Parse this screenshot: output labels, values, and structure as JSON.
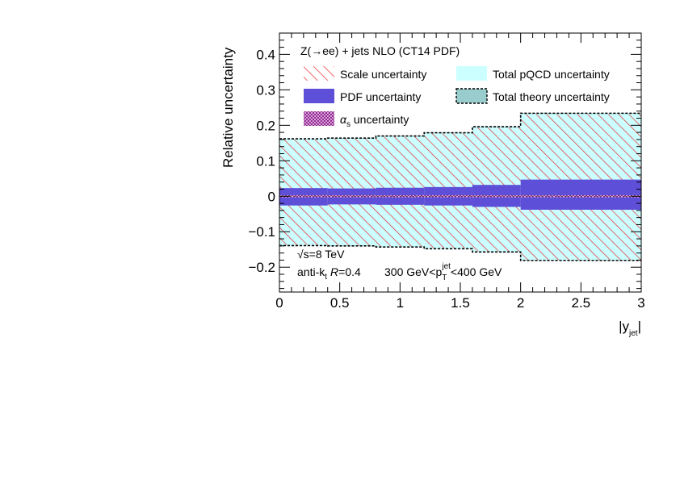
{
  "chart_data": {
    "type": "area",
    "title": "Z(→ee) + jets NLO (CT14 PDF)",
    "xlabel": "|y_jet|",
    "xlabel_main": "|y",
    "xlabel_sub": "jet",
    "xlabel_close": "|",
    "ylabel": "Relative uncertainty",
    "xlim": [
      0,
      3
    ],
    "ylim": [
      -0.27,
      0.46
    ],
    "x_ticks": [
      0,
      0.5,
      1,
      1.5,
      2,
      2.5,
      3
    ],
    "x_tick_labels": [
      "0",
      "0.5",
      "1",
      "1.5",
      "2",
      "2.5",
      "3"
    ],
    "y_ticks": [
      -0.2,
      -0.1,
      0,
      0.1,
      0.2,
      0.3,
      0.4
    ],
    "y_tick_labels": [
      "−0.2",
      "−0.1",
      "0",
      "0.1",
      "0.2",
      "0.3",
      "0.4"
    ],
    "bin_edges": [
      0,
      0.4,
      0.8,
      1.2,
      1.6,
      2.0,
      3.0
    ],
    "series": [
      {
        "name": "Scale uncertainty",
        "up": [
          0.16,
          0.162,
          0.168,
          0.177,
          0.193,
          0.231
        ],
        "down": [
          -0.137,
          -0.138,
          -0.141,
          -0.146,
          -0.155,
          -0.179
        ]
      },
      {
        "name": "PDF uncertainty",
        "up": [
          0.023,
          0.022,
          0.024,
          0.026,
          0.032,
          0.047
        ],
        "down": [
          -0.026,
          -0.023,
          -0.024,
          -0.026,
          -0.03,
          -0.038
        ]
      },
      {
        "name": "αs uncertainty",
        "up": [
          0.003,
          0.003,
          0.003,
          0.003,
          0.003,
          0.003
        ],
        "down": [
          -0.003,
          -0.003,
          -0.003,
          -0.003,
          -0.003,
          -0.003
        ]
      },
      {
        "name": "Total pQCD uncertainty",
        "up": [
          0.161,
          0.163,
          0.169,
          0.178,
          0.194,
          0.232
        ],
        "down": [
          -0.138,
          -0.139,
          -0.142,
          -0.147,
          -0.156,
          -0.18
        ]
      },
      {
        "name": "Total theory uncertainty",
        "up": [
          0.162,
          0.164,
          0.17,
          0.179,
          0.196,
          0.234
        ],
        "down": [
          -0.139,
          -0.14,
          -0.143,
          -0.148,
          -0.157,
          -0.181
        ]
      }
    ],
    "legend": {
      "placement": "top",
      "entries": [
        {
          "key": "scale",
          "label": "Scale uncertainty"
        },
        {
          "key": "pqcd",
          "label": "Total pQCD uncertainty"
        },
        {
          "key": "pdf",
          "label": "PDF uncertainty"
        },
        {
          "key": "theory",
          "label": "Total theory uncertainty"
        },
        {
          "key": "alphas",
          "label": "αs uncertainty",
          "label_symbol": "α",
          "label_sub": "s",
          "label_rest": " uncertainty"
        }
      ]
    },
    "annotations": {
      "sqrt_s": "√s=8 TeV",
      "algo_prefix": "anti-k",
      "algo_sub": "t",
      "algo_r": "R",
      "algo_rest": "=0.4",
      "pt_range_prefix": "300 GeV<p",
      "pt_sub": "T",
      "pt_sup": "jet",
      "pt_range_suffix": "<400 GeV"
    },
    "colors": {
      "scale_hatch": "#e8282a",
      "pqcd_fill": "#ccffff",
      "pdf_fill": "#5e4fd8",
      "alphas_fill": "#8a1a8a",
      "theory_fill": "#99cccc",
      "theory_line": "#000000"
    }
  }
}
